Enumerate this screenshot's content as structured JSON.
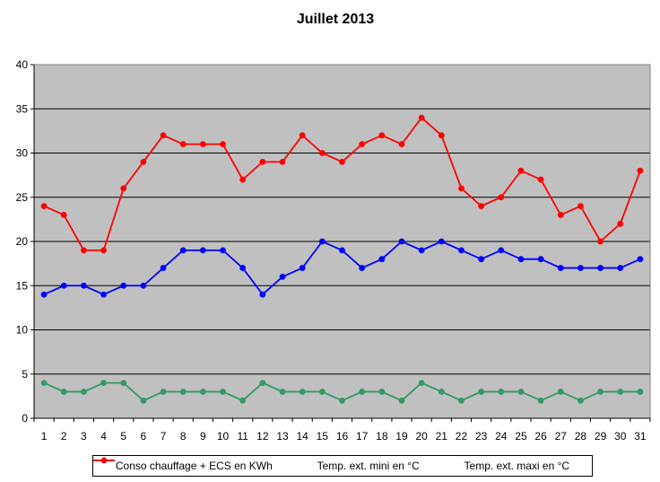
{
  "chart_data": {
    "type": "line",
    "title": "Juillet 2013",
    "xlabel": "",
    "ylabel": "",
    "ylim": [
      0,
      40
    ],
    "yticks": [
      0,
      5,
      10,
      15,
      20,
      25,
      30,
      35,
      40
    ],
    "grid": "horizontal",
    "legend_position": "bottom",
    "plot_background": "#C0C0C0",
    "categories": [
      "1",
      "2",
      "3",
      "4",
      "5",
      "6",
      "7",
      "8",
      "9",
      "10",
      "11",
      "12",
      "13",
      "14",
      "15",
      "16",
      "17",
      "18",
      "19",
      "20",
      "21",
      "22",
      "23",
      "24",
      "25",
      "26",
      "27",
      "28",
      "29",
      "30",
      "31"
    ],
    "series": [
      {
        "name": "Conso chauffage + ECS en KWh",
        "color": "#339966",
        "values": [
          4,
          3,
          3,
          4,
          4,
          2,
          3,
          3,
          3,
          3,
          2,
          4,
          3,
          3,
          3,
          2,
          3,
          3,
          2,
          4,
          3,
          2,
          3,
          3,
          3,
          2,
          3,
          2,
          3,
          3,
          3
        ]
      },
      {
        "name": "Temp. ext. mini en °C",
        "color": "#0000FF",
        "values": [
          14,
          15,
          15,
          14,
          15,
          15,
          17,
          19,
          19,
          19,
          17,
          14,
          16,
          17,
          20,
          19,
          17,
          18,
          20,
          19,
          20,
          19,
          18,
          19,
          18,
          18,
          17,
          17,
          17,
          17,
          18
        ]
      },
      {
        "name": "Temp. ext. maxi en °C",
        "color": "#FF0000",
        "values": [
          24,
          23,
          19,
          19,
          26,
          29,
          32,
          31,
          31,
          31,
          27,
          29,
          29,
          32,
          30,
          29,
          31,
          32,
          31,
          34,
          32,
          26,
          24,
          25,
          28,
          27,
          23,
          24,
          20,
          22,
          28
        ]
      }
    ]
  }
}
